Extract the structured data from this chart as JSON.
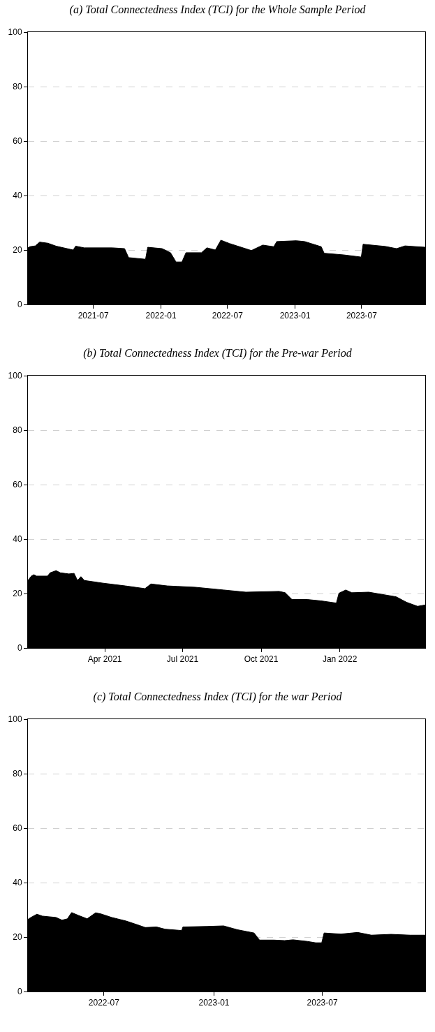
{
  "chart_data": [
    {
      "type": "area",
      "title": "(a) Total Connectedness Index (TCI) for the Whole Sample Period",
      "grid": "y",
      "x": [
        "2021-01-04",
        "2021-01-09",
        "2021-01-24",
        "2021-02-05",
        "2021-02-27",
        "2021-03-22",
        "2021-05-07",
        "2021-05-14",
        "2021-06-06",
        "2021-08-21",
        "2021-09-24",
        "2021-10-05",
        "2021-11-20",
        "2021-11-26",
        "2022-01-04",
        "2022-01-27",
        "2022-02-11",
        "2022-02-27",
        "2022-03-10",
        "2022-04-21",
        "2022-05-06",
        "2022-05-29",
        "2022-06-13",
        "2022-07-06",
        "2022-09-04",
        "2022-10-05",
        "2022-11-04",
        "2022-11-12",
        "2023-01-04",
        "2023-01-27",
        "2023-03-13",
        "2023-03-21",
        "2023-05-13",
        "2023-06-30",
        "2023-07-05",
        "2023-09-04",
        "2023-10-04",
        "2023-10-27",
        "2023-12-21"
      ],
      "series": [
        {
          "color": "#000000",
          "values": [
            20.8,
            21.2,
            21.5,
            22.9,
            22.5,
            21.4,
            20,
            21.4,
            20.8,
            20.8,
            20.5,
            17.2,
            16.6,
            21,
            20.5,
            19,
            15.6,
            15.6,
            19,
            19,
            20.8,
            20,
            23.6,
            22.4,
            19.8,
            21.8,
            21.2,
            23.1,
            23.4,
            23.1,
            21.2,
            18.8,
            18.2,
            17.4,
            22.1,
            21.3,
            20.5,
            21.5,
            21
          ]
        }
      ],
      "xlim": [
        "2021-01-04",
        "2023-12-21"
      ],
      "xticks": [
        {
          "value": "2021-07-01",
          "label": "2021-07"
        },
        {
          "value": "2022-01-01",
          "label": "2022-01"
        },
        {
          "value": "2022-07-01",
          "label": "2022-07"
        },
        {
          "value": "2023-01-01",
          "label": "2023-01"
        },
        {
          "value": "2023-07-01",
          "label": "2023-07"
        }
      ],
      "ylim": [
        0,
        100
      ],
      "yticks": [
        0,
        20,
        40,
        60,
        80,
        100
      ]
    },
    {
      "type": "area",
      "title": "(b) Total Connectedness Index (TCI) for the Pre-war Period",
      "grid": "y",
      "x": [
        "2021-01-01",
        "2021-01-05",
        "2021-01-08",
        "2021-01-11",
        "2021-01-24",
        "2021-01-27",
        "2021-02-03",
        "2021-02-08",
        "2021-02-18",
        "2021-02-24",
        "2021-02-28",
        "2021-03-04",
        "2021-03-08",
        "2021-03-30",
        "2021-04-25",
        "2021-05-18",
        "2021-05-25",
        "2021-06-13",
        "2021-07-16",
        "2021-08-18",
        "2021-09-13",
        "2021-10-22",
        "2021-10-29",
        "2021-11-06",
        "2021-11-24",
        "2021-12-10",
        "2021-12-28",
        "2021-12-31",
        "2022-01-08",
        "2022-01-15",
        "2022-02-04",
        "2022-02-17",
        "2022-03-08",
        "2022-03-20",
        "2022-04-02",
        "2022-04-11"
      ],
      "series": [
        {
          "color": "#000000",
          "values": [
            24.8,
            26.4,
            26.9,
            26.4,
            26.4,
            27.6,
            28.4,
            27.6,
            27.2,
            27.4,
            24.8,
            26.2,
            24.8,
            23.8,
            22.8,
            21.8,
            23.5,
            22.8,
            22.3,
            21.3,
            20.5,
            20.8,
            20.3,
            17.8,
            17.8,
            17.3,
            16.5,
            20.1,
            21.3,
            20.3,
            20.5,
            19.8,
            18.8,
            16.8,
            15.3,
            15.8
          ]
        }
      ],
      "xlim": [
        "2021-01-01",
        "2022-04-11"
      ],
      "xticks": [
        {
          "value": "2021-04-01",
          "label": "Apr 2021"
        },
        {
          "value": "2021-07-01",
          "label": "Jul 2021"
        },
        {
          "value": "2021-10-01",
          "label": "Oct 2021"
        },
        {
          "value": "2022-01-01",
          "label": "Jan 2022"
        }
      ],
      "ylim": [
        0,
        100
      ],
      "yticks": [
        0,
        20,
        40,
        60,
        80,
        100
      ]
    },
    {
      "type": "area",
      "title": "(c) Total Connectedness Index (TCI) for the war Period",
      "grid": "y",
      "x": [
        "2022-02-24",
        "2022-03-01",
        "2022-03-11",
        "2022-03-20",
        "2022-04-12",
        "2022-04-22",
        "2022-05-01",
        "2022-05-08",
        "2022-05-20",
        "2022-06-03",
        "2022-06-17",
        "2022-06-26",
        "2022-07-14",
        "2022-08-07",
        "2022-08-30",
        "2022-09-08",
        "2022-09-27",
        "2022-10-11",
        "2022-11-08",
        "2022-11-10",
        "2022-12-20",
        "2023-01-17",
        "2023-02-09",
        "2023-03-09",
        "2023-03-18",
        "2023-04-11",
        "2023-04-29",
        "2023-05-13",
        "2023-06-06",
        "2023-06-20",
        "2023-06-30",
        "2023-07-04",
        "2023-08-01",
        "2023-08-29",
        "2023-09-21",
        "2023-10-24",
        "2023-11-25",
        "2023-12-20"
      ],
      "series": [
        {
          "color": "#000000",
          "values": [
            26.5,
            27.2,
            28.4,
            27.7,
            27.2,
            26.2,
            26.7,
            29,
            27.9,
            26.7,
            28.9,
            28.5,
            27.2,
            25.9,
            24.2,
            23.5,
            23.7,
            22.9,
            22.4,
            23.7,
            23.9,
            24.1,
            22.7,
            21.5,
            18.9,
            18.9,
            18.7,
            19,
            18.4,
            17.9,
            17.9,
            21.5,
            21.1,
            21.7,
            20.7,
            21,
            20.7,
            20.7
          ]
        }
      ],
      "xlim": [
        "2022-02-24",
        "2023-12-20"
      ],
      "xticks": [
        {
          "value": "2022-07-01",
          "label": "2022-07"
        },
        {
          "value": "2023-01-01",
          "label": "2023-01"
        },
        {
          "value": "2023-07-01",
          "label": "2023-07"
        }
      ],
      "ylim": [
        0,
        100
      ],
      "yticks": [
        0,
        20,
        40,
        60,
        80,
        100
      ]
    }
  ]
}
